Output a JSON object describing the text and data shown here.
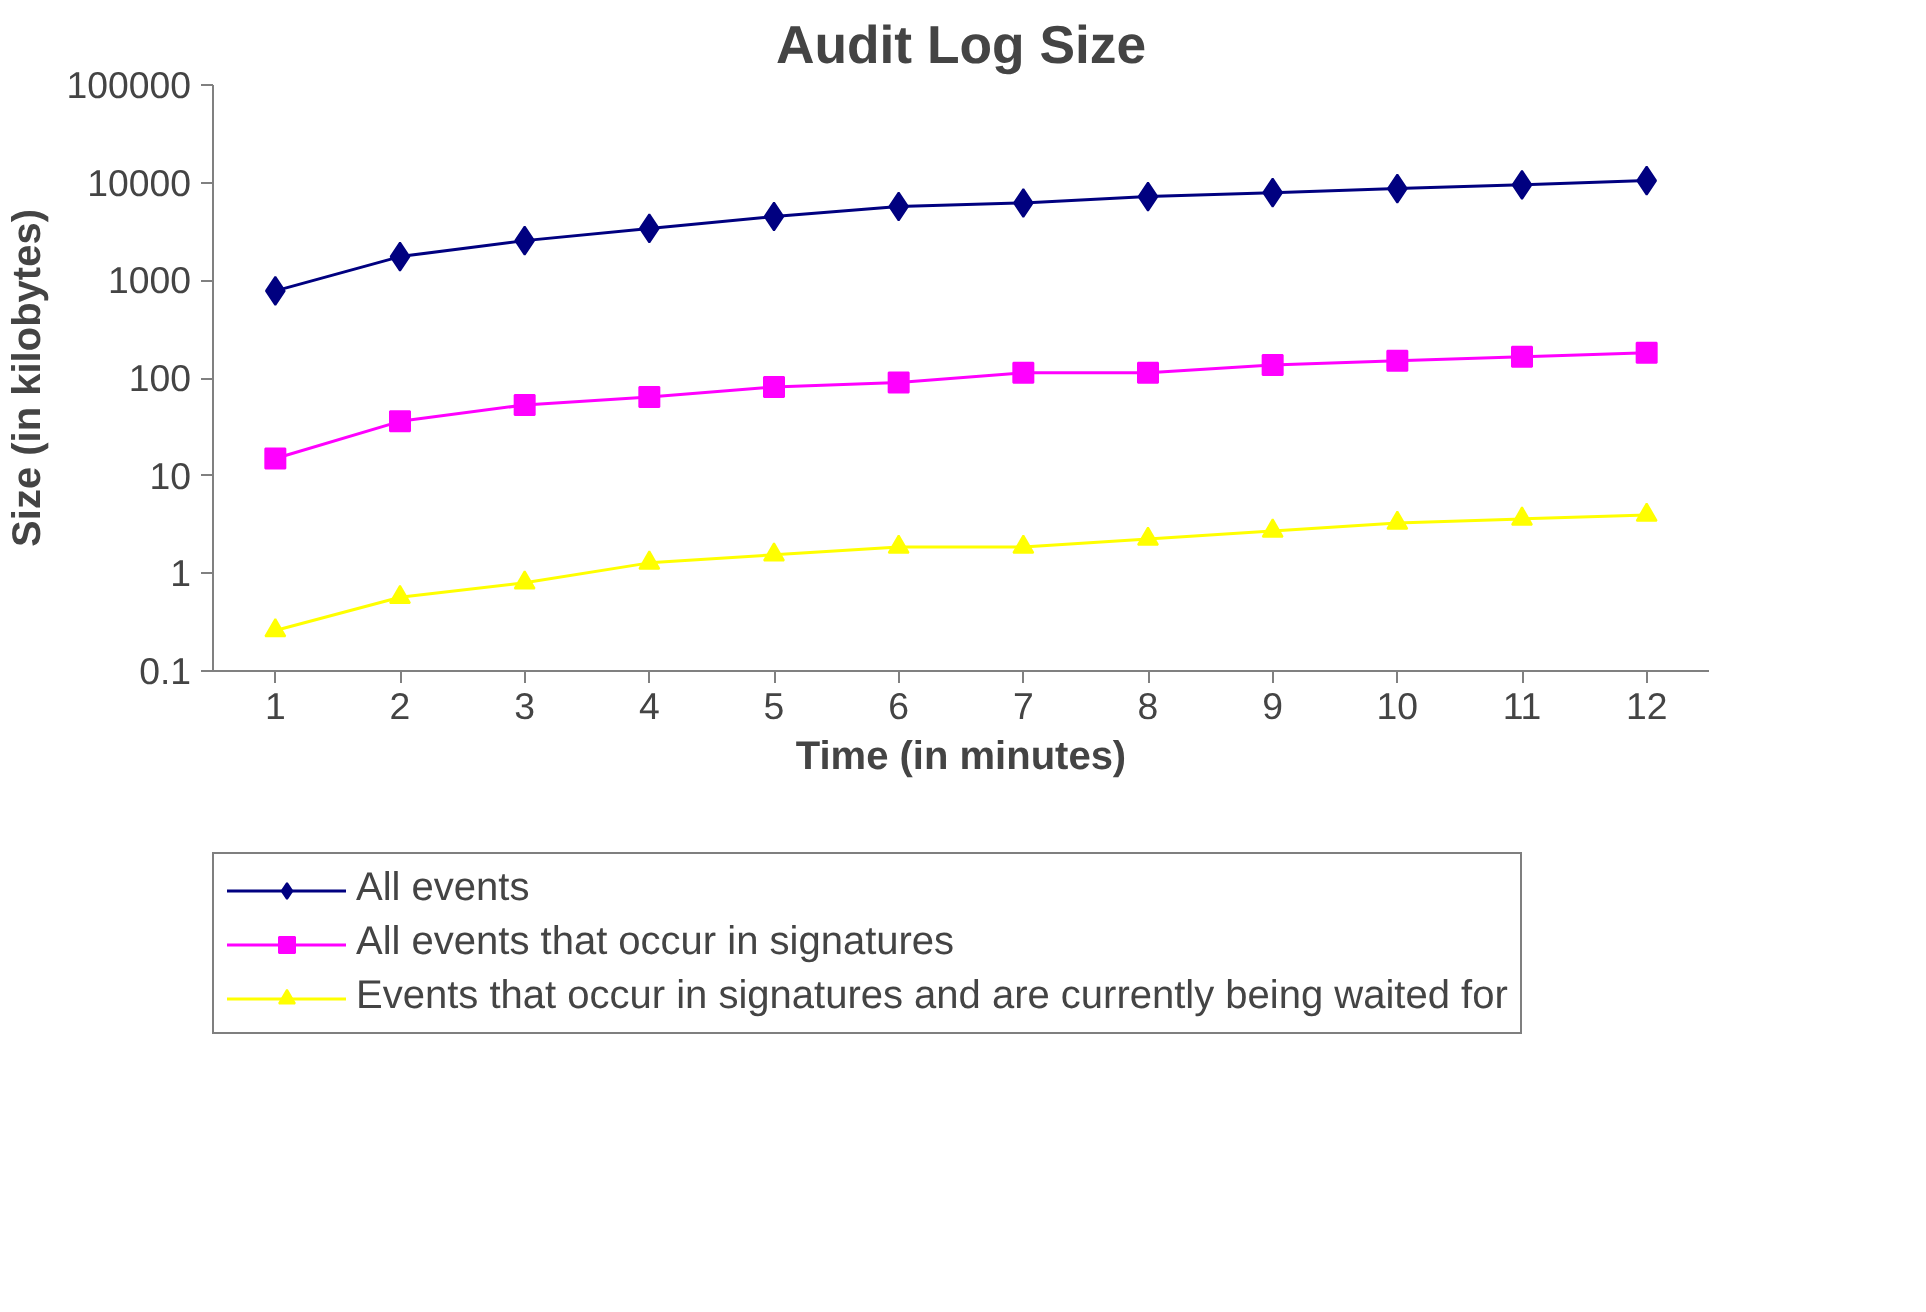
{
  "chart_data": {
    "type": "line",
    "title": "Audit Log Size",
    "xlabel": "Time (in minutes)",
    "ylabel": "Size (in kilobytes)",
    "x": [
      1,
      2,
      3,
      4,
      5,
      6,
      7,
      8,
      9,
      10,
      11,
      12
    ],
    "xlim": [
      0.5,
      12.5
    ],
    "xticks": [
      1,
      2,
      3,
      4,
      5,
      6,
      7,
      8,
      9,
      10,
      11,
      12
    ],
    "log": true,
    "ylim": [
      0.1,
      100000
    ],
    "yticks": [
      0.1,
      1,
      10,
      100,
      1000,
      10000,
      100000
    ],
    "grid": false,
    "legend": "bottom",
    "series": [
      {
        "name": "All events",
        "color": "#000080",
        "marker": "diamond",
        "values": [
          780,
          1750,
          2550,
          3400,
          4500,
          5700,
          6200,
          7200,
          7900,
          8700,
          9500,
          10500
        ]
      },
      {
        "name": "All events that occur in signatures",
        "color": "#ff00ff",
        "marker": "square",
        "values": [
          15,
          36,
          53,
          64,
          81,
          90,
          113,
          113,
          136,
          150,
          165,
          181
        ]
      },
      {
        "name": "Events that occur in signatures and are currently being waited for",
        "color": "#ffff00",
        "marker": "triangle",
        "values": [
          0.26,
          0.57,
          0.8,
          1.28,
          1.55,
          1.86,
          1.86,
          2.25,
          2.72,
          3.28,
          3.61,
          3.96
        ]
      }
    ]
  }
}
